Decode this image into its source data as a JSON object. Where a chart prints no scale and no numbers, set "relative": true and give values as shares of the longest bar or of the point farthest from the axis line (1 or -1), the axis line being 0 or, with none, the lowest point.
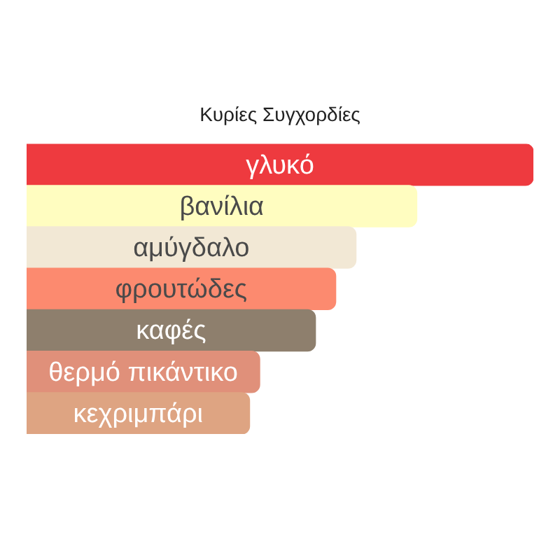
{
  "chart_data": {
    "type": "bar",
    "title": "Κυρίες Συγχορδίες",
    "orientation": "horizontal",
    "relative": true,
    "categories": [
      "γλυκό",
      "βανίλια",
      "αμύγδαλο",
      "φρουτώδες",
      "καφές",
      "θερμό πικάντικο",
      "κεχριμπάρι"
    ],
    "values": [
      1,
      0.77,
      0.65,
      0.61,
      0.57,
      0.46,
      0.44
    ],
    "colors": [
      "#ee3a3f",
      "#fffdc0",
      "#f2e8d5",
      "#fc8a6f",
      "#8e7f6d",
      "#e0907a",
      "#dea482"
    ]
  }
}
